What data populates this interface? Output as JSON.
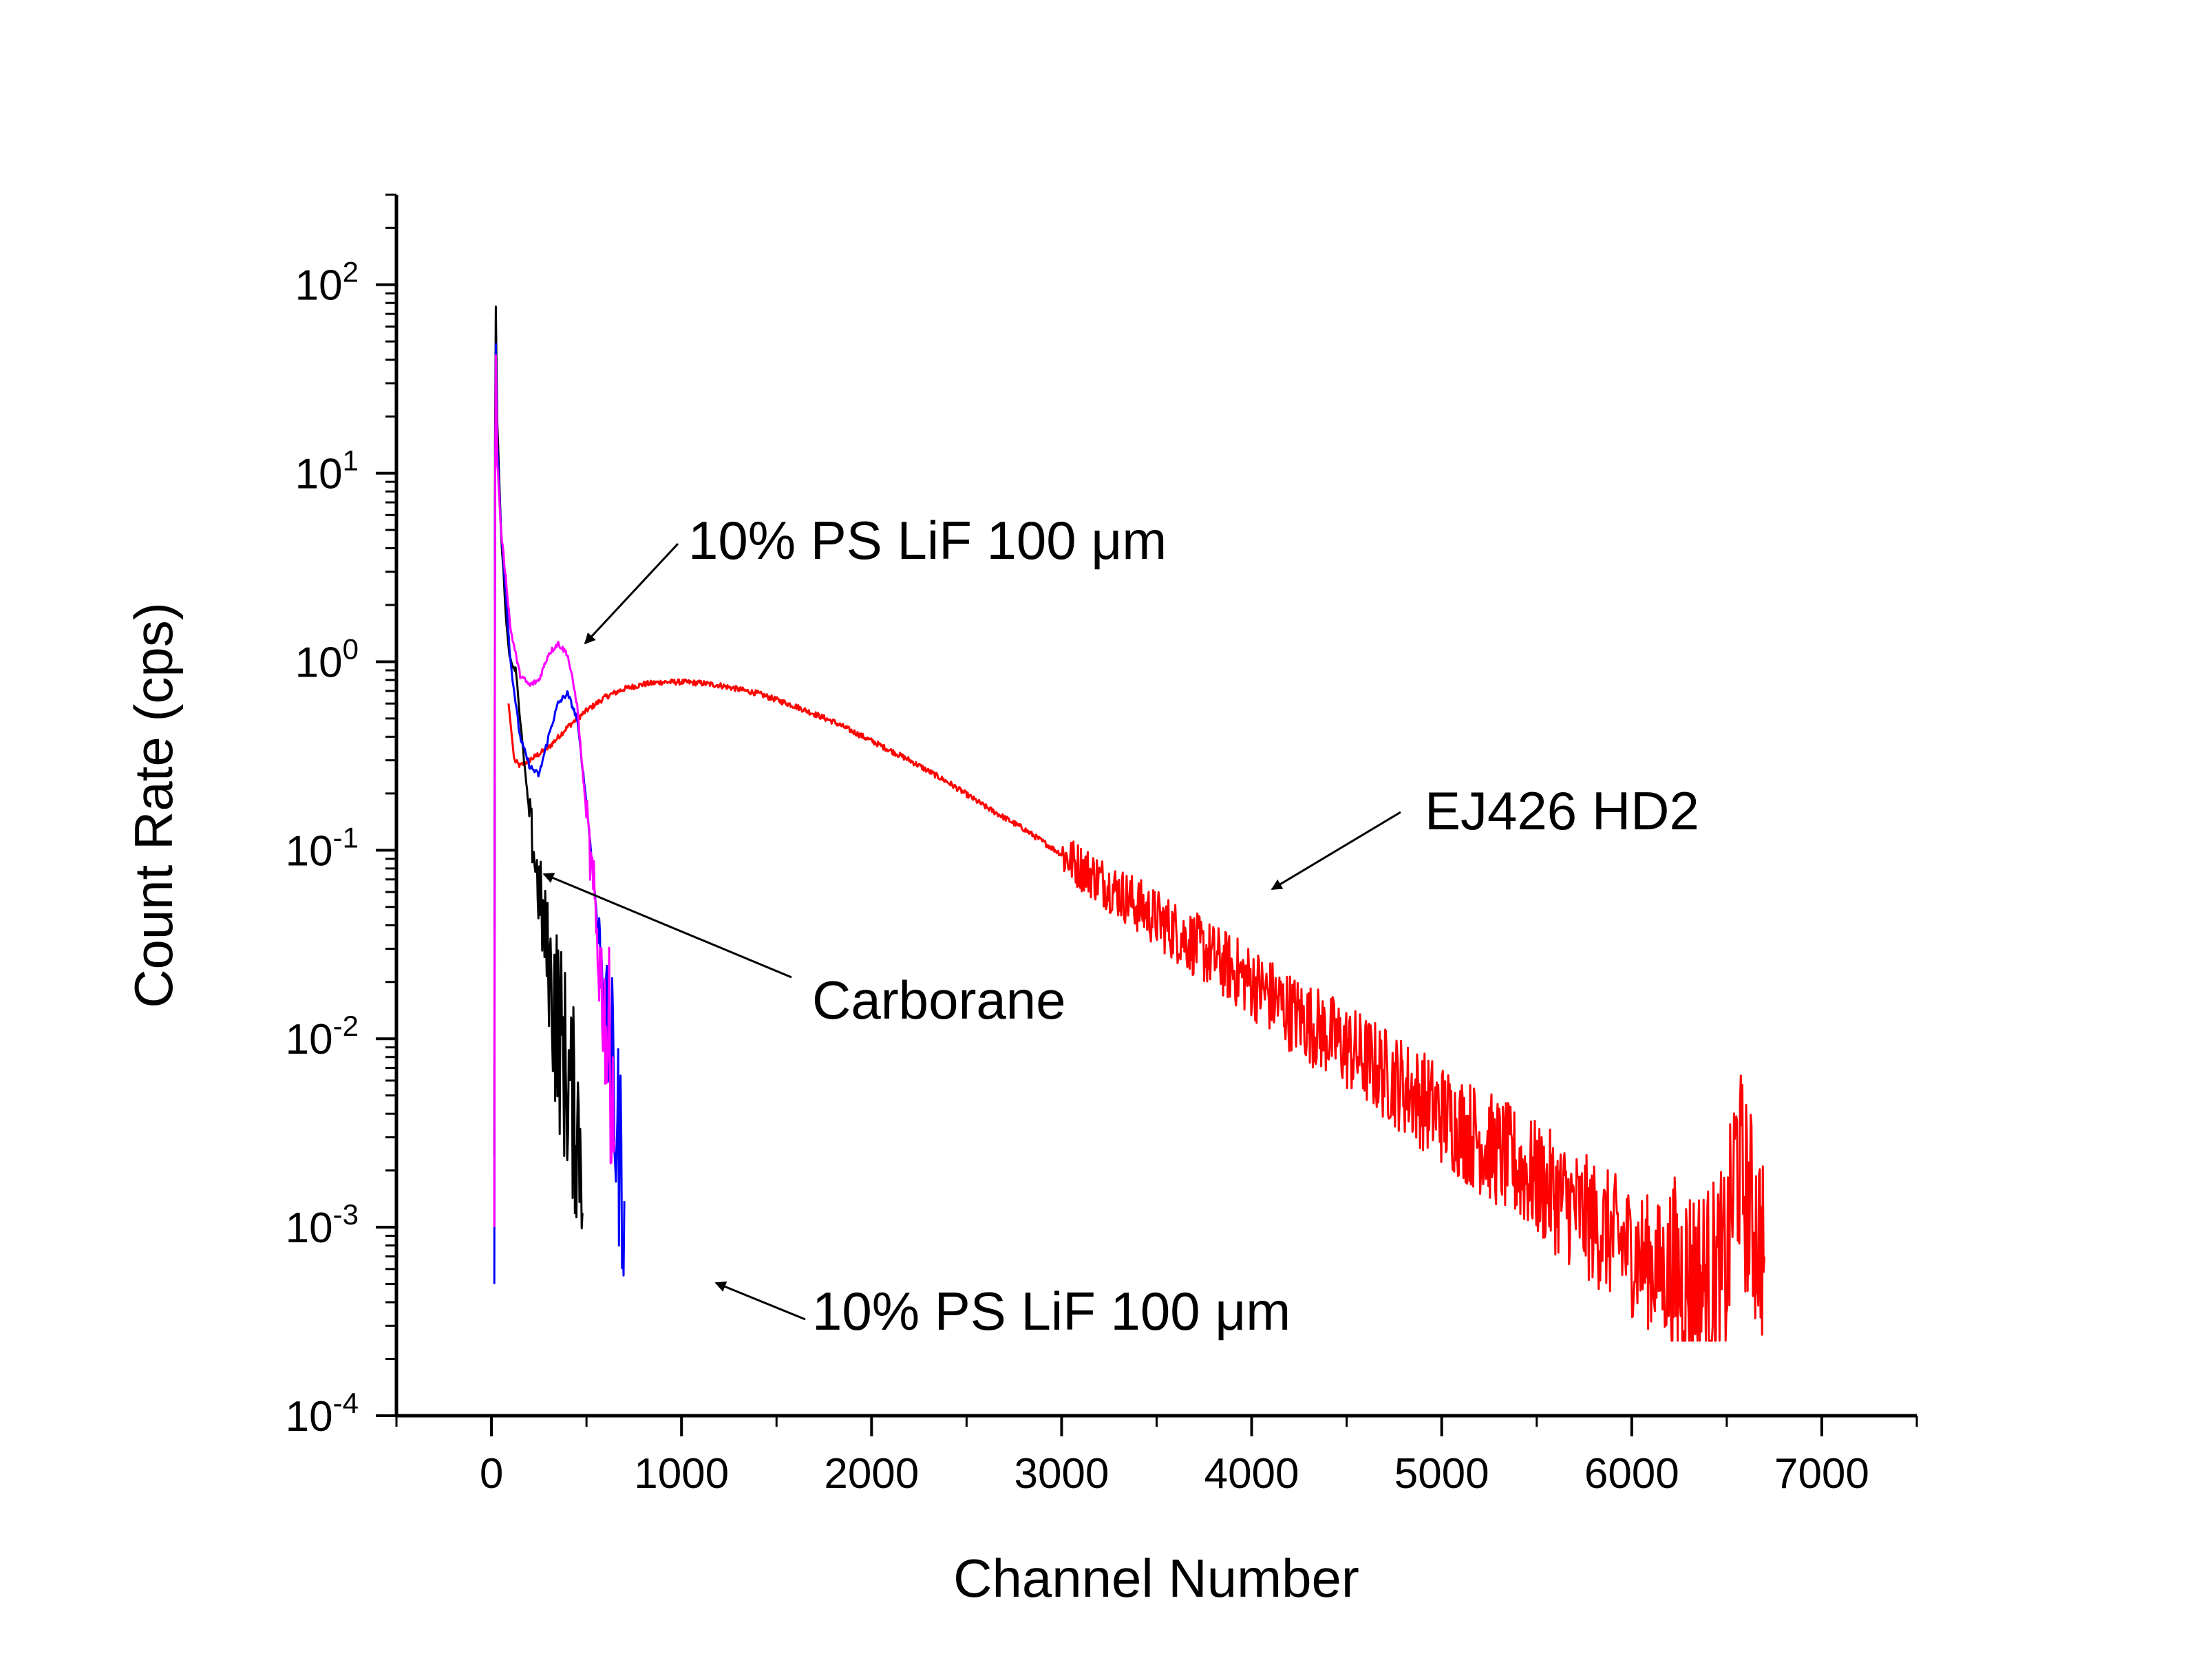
{
  "chart_data": {
    "type": "line",
    "title": "",
    "xlabel": "Channel Number",
    "ylabel": "Count Rate (cps)",
    "xlim": [
      -500,
      7500
    ],
    "ylim": [
      0.0001,
      300
    ],
    "yscale": "log",
    "grid": false,
    "x_ticks": [
      "0",
      "1000",
      "2000",
      "3000",
      "4000",
      "5000",
      "6000",
      "7000"
    ],
    "y_ticks": [
      {
        "base": "10",
        "exp": "2"
      },
      {
        "base": "10",
        "exp": "1"
      },
      {
        "base": "10",
        "exp": "0"
      },
      {
        "base": "10",
        "exp": "-1"
      },
      {
        "base": "10",
        "exp": "-2"
      },
      {
        "base": "10",
        "exp": "-3"
      },
      {
        "base": "10",
        "exp": "-4"
      }
    ],
    "series": [
      {
        "color": "#ff0000",
        "noisy_after": 3000,
        "noise_tail_after": 6200,
        "x": [
          90,
          120,
          150,
          200,
          300,
          400,
          500,
          600,
          700,
          800,
          900,
          1000,
          1100,
          1200,
          1400,
          1600,
          1800,
          2000,
          2200,
          2400,
          2600,
          2800,
          3000,
          3200,
          3400,
          3600,
          3800,
          4000,
          4200,
          4400,
          4600,
          4800,
          5000,
          5200,
          5400,
          5600,
          5800,
          6000,
          6200,
          6400,
          6500,
          6550,
          6600,
          6650,
          6700
        ],
        "y": [
          0.6,
          0.3,
          0.28,
          0.3,
          0.35,
          0.45,
          0.55,
          0.65,
          0.72,
          0.76,
          0.78,
          0.78,
          0.77,
          0.75,
          0.68,
          0.58,
          0.48,
          0.38,
          0.3,
          0.23,
          0.17,
          0.13,
          0.095,
          0.07,
          0.051,
          0.037,
          0.027,
          0.02,
          0.014,
          0.0105,
          0.0077,
          0.0056,
          0.004,
          0.0029,
          0.0021,
          0.0015,
          0.00105,
          0.00075,
          0.00055,
          0.0005,
          0.0006,
          0.0025,
          0.0015,
          0.001,
          0.0008
        ]
      },
      {
        "color": "#000000",
        "noisy_after": 200,
        "noise_tail_after": 320,
        "x": [
          15,
          20,
          30,
          50,
          80,
          100,
          130,
          150,
          200,
          250,
          300,
          350,
          400,
          450,
          480
        ],
        "y": [
          0.00241,
          130,
          20,
          5,
          1.5,
          1.0,
          0.9,
          0.5,
          0.15,
          0.06,
          0.025,
          0.012,
          0.006,
          0.0035,
          0.0028
        ]
      },
      {
        "color": "#0000ff",
        "noisy_after": 550,
        "noise_tail_after": 630,
        "x": [
          15,
          20,
          30,
          50,
          80,
          100,
          150,
          200,
          250,
          300,
          350,
          400,
          450,
          500,
          550,
          600,
          650,
          700
        ],
        "y": [
          0.0005,
          80,
          15,
          5,
          2,
          1.0,
          0.4,
          0.28,
          0.25,
          0.4,
          0.6,
          0.68,
          0.5,
          0.18,
          0.05,
          0.015,
          0.004,
          0.0015
        ]
      },
      {
        "color": "#ff00ff",
        "noisy_after": 500,
        "noise_tail_after": 600,
        "x": [
          15,
          20,
          30,
          50,
          80,
          100,
          150,
          200,
          250,
          300,
          350,
          400,
          450,
          500,
          550,
          600,
          650
        ],
        "y": [
          0.001,
          70,
          12,
          5,
          2.5,
          1.5,
          0.85,
          0.75,
          0.8,
          1.1,
          1.25,
          1.1,
          0.6,
          0.15,
          0.04,
          0.012,
          0.005
        ]
      }
    ],
    "annotations": [
      {
        "text": "10% PS LiF 100 μm"
      },
      {
        "text": "EJ426 HD2"
      },
      {
        "text": "Carborane"
      },
      {
        "text": "10% PS LiF 100 μm"
      }
    ]
  }
}
